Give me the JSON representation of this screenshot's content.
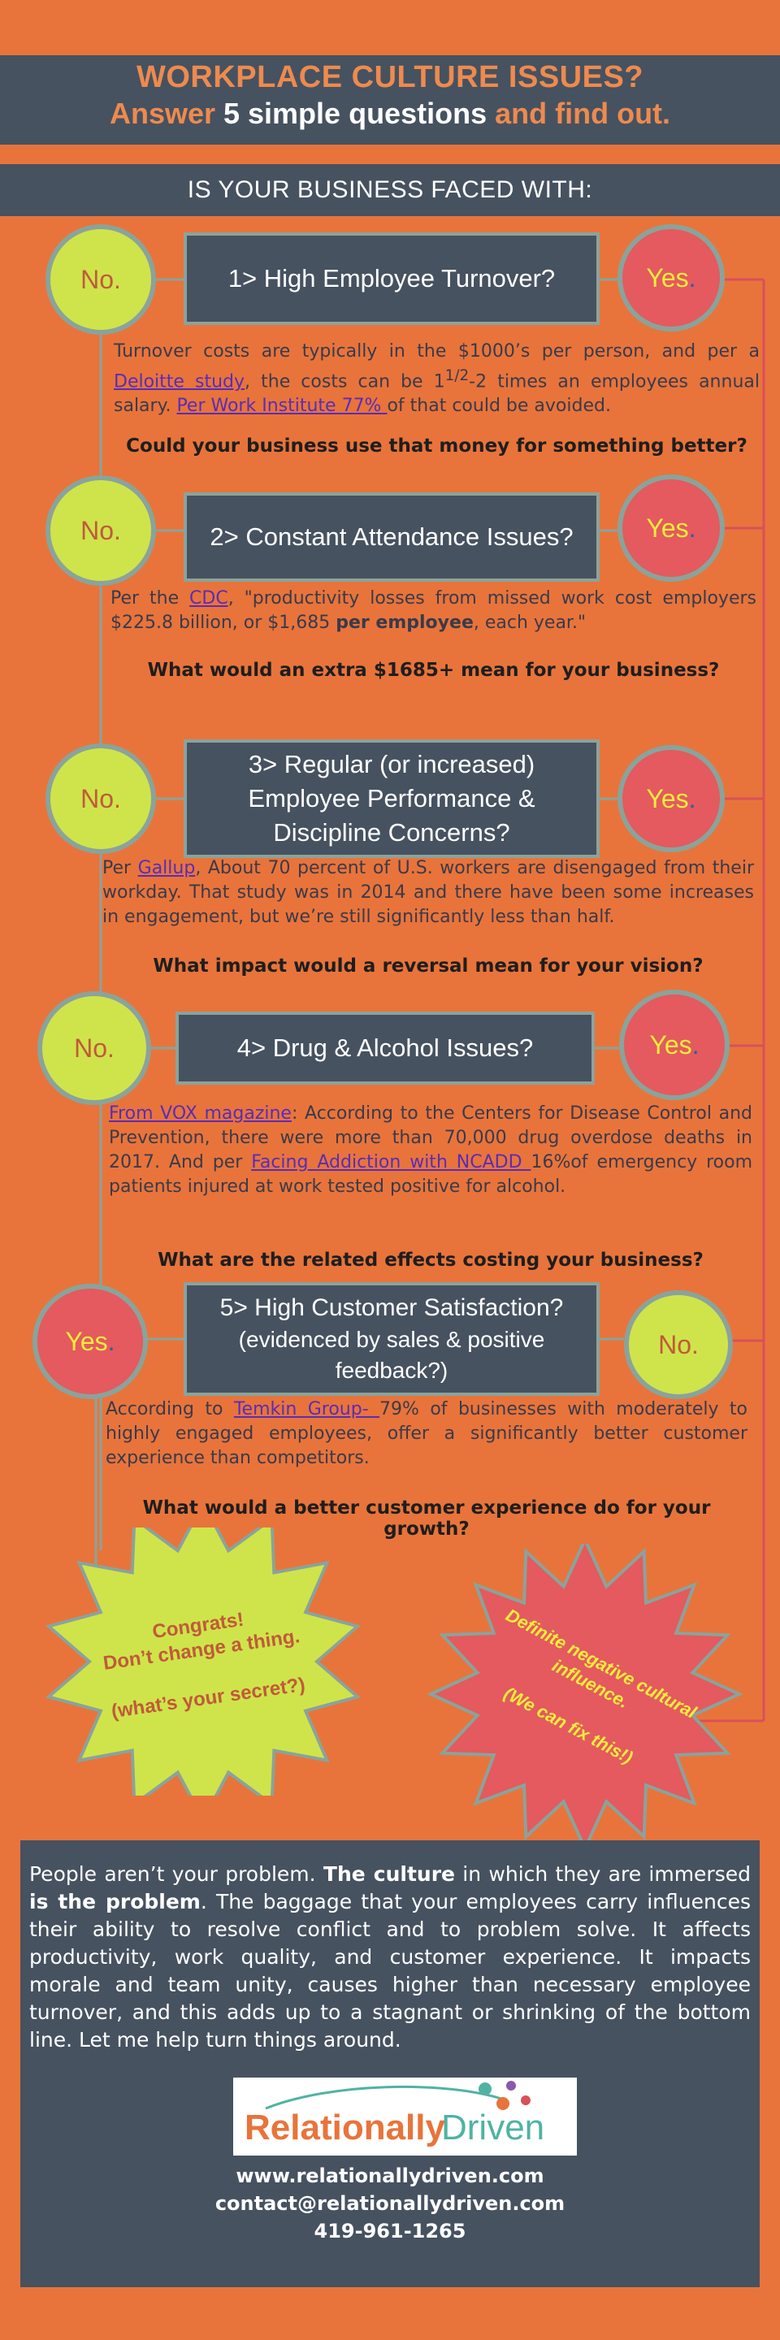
{
  "header": {
    "line1": "WORKPLACE CULTURE ISSUES?",
    "line2_pre": "Answer ",
    "line2_highlight": "5 simple questions",
    "line2_post": " and find out."
  },
  "subheader": "IS YOUR BUSINESS FACED WITH:",
  "labels": {
    "no": "No.",
    "yes_word": "Yes",
    "yes_dot": "."
  },
  "questions": [
    {
      "title": "1> High Employee Turnover?",
      "text_segments": [
        {
          "t": "Turnover costs are typically in the $1000’s per person, and per a "
        },
        {
          "t": "Deloitte study",
          "link": true
        },
        {
          "t": ", the costs can be 1"
        },
        {
          "t": "1/2",
          "sup": true
        },
        {
          "t": "-2 times an employees annual salary. "
        },
        {
          "t": "Per Work Institute 77% ",
          "link": true
        },
        {
          "t": "of that could be avoided."
        }
      ],
      "followup": "Could your business use that money for something better?"
    },
    {
      "title": "2> Constant Attendance Issues?",
      "text_segments": [
        {
          "t": "Per the "
        },
        {
          "t": "CDC",
          "link": true
        },
        {
          "t": ", \"productivity losses from missed work cost employers $225.8 billion, or $1,685 "
        },
        {
          "t": "per employee",
          "bold": true
        },
        {
          "t": ", each year.\""
        }
      ],
      "followup": "What would an extra $1685+ mean for your business?"
    },
    {
      "title_lines": [
        "3> Regular (or increased)",
        "Employee Performance &",
        "Discipline Concerns?"
      ],
      "text_segments": [
        {
          "t": "Per "
        },
        {
          "t": "Gallup",
          "link": true
        },
        {
          "t": ", About 70 percent of U.S. workers are disengaged from their workday. That study was in 2014 and there have been some increases in engagement, but we’re still significantly less than half."
        }
      ],
      "followup": "What impact would a reversal mean for your vision?"
    },
    {
      "title": "4> Drug & Alcohol Issues?",
      "text_segments": [
        {
          "t": "From VOX magazine",
          "link": true
        },
        {
          "t": ": According to the Centers for Disease Control and Prevention, there were more than 70,000 drug overdose deaths in 2017. And per "
        },
        {
          "t": "Facing Addiction with NCADD ",
          "link": true
        },
        {
          "t": "16%of emergency room patients injured at work tested positive for alcohol."
        }
      ],
      "followup": "What are the related effects costing your business?"
    },
    {
      "title_lines": [
        "5> High Customer Satisfaction?",
        "(evidenced by sales & positive",
        "feedback?)"
      ],
      "text_segments": [
        {
          "t": "According to "
        },
        {
          "t": "Temkin Group- ",
          "link": true
        },
        {
          "t": "79% of businesses with moderately to highly engaged employees, offer a significantly better customer experience than competitors."
        }
      ],
      "followup": "What would a better customer experience do for your growth?"
    }
  ],
  "outcomes": {
    "good": [
      "Congrats!",
      "Don’t change a thing.",
      "",
      "(what’s your secret?)"
    ],
    "bad": [
      "Definite negative cultural",
      "influence.",
      "",
      "(We can fix this!)"
    ]
  },
  "footer": {
    "paragraph_segments": [
      {
        "t": "People aren’t your problem. "
      },
      {
        "t": "The culture",
        "bold": true
      },
      {
        "t": " in which they are immersed "
      },
      {
        "t": "is the problem",
        "bold": true
      },
      {
        "t": ". The baggage that your employees carry influences their ability to resolve conflict and to problem solve. It affects productivity, work quality, and customer experience. It impacts morale and team unity, causes higher than necessary employee turnover, and this adds up to a stagnant or shrinking of the bottom line. Let me help turn things around."
      }
    ],
    "logo_part1": "Relationally",
    "logo_part2": "Driven",
    "website": "www.relationallydriven.com",
    "email": "contact@relationallydriven.com",
    "phone": "419-961-1265"
  },
  "colors": {
    "background": "#e8743b",
    "panel": "#465260",
    "no_circle": "#cfe44a",
    "yes_circle": "#e45a5e",
    "link": "#5a2cb8"
  }
}
